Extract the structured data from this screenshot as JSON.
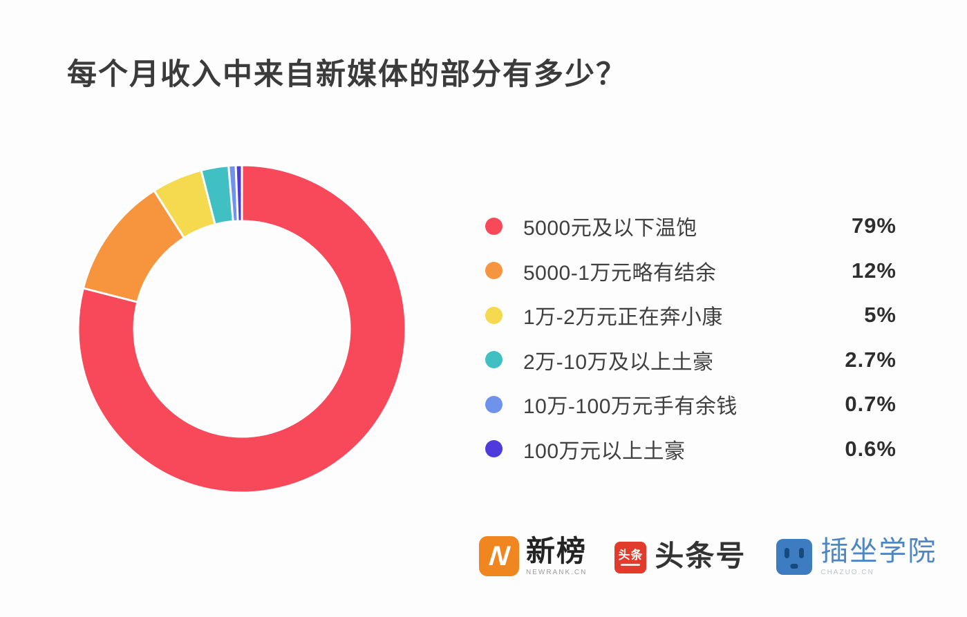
{
  "title": {
    "text": "每个月收入中来自新媒体的部分有多少？"
  },
  "chart_data": {
    "type": "pie",
    "subtype": "donut",
    "title": "每个月收入中来自新媒体的部分有多少？",
    "categories": [
      "5000元及以下温饱",
      "5000-1万元略有结余",
      "1万-2万元正在奔小康",
      "2万-10万及以上土豪",
      "10万-100万元手有余钱",
      "100万元以上土豪"
    ],
    "values": [
      79,
      12,
      5,
      2.7,
      0.7,
      0.6
    ],
    "value_labels": [
      "79%",
      "12%",
      "5%",
      "2.7%",
      "0.7%",
      "0.6%"
    ],
    "colors": [
      "#F8495A",
      "#F7953F",
      "#F5D94E",
      "#41C0C3",
      "#6F92EB",
      "#4E3BDC"
    ],
    "legend_position": "right",
    "start_angle_deg": 0,
    "direction": "clockwise",
    "inner_radius_ratio": 0.66,
    "separator_color": "#FFFFFF"
  },
  "footer": {
    "newrank": {
      "letter": "N",
      "title": "新榜",
      "subtitle": "NEWRANK.CN",
      "badge_color": "#F0861F"
    },
    "toutiao": {
      "badge_text": "头条",
      "title": "头条号",
      "badge_color": "#E23A2C"
    },
    "chazuo": {
      "title": "插坐学院",
      "subtitle": "CHAZUO.CN",
      "badge_color": "#3D7CC0"
    }
  }
}
